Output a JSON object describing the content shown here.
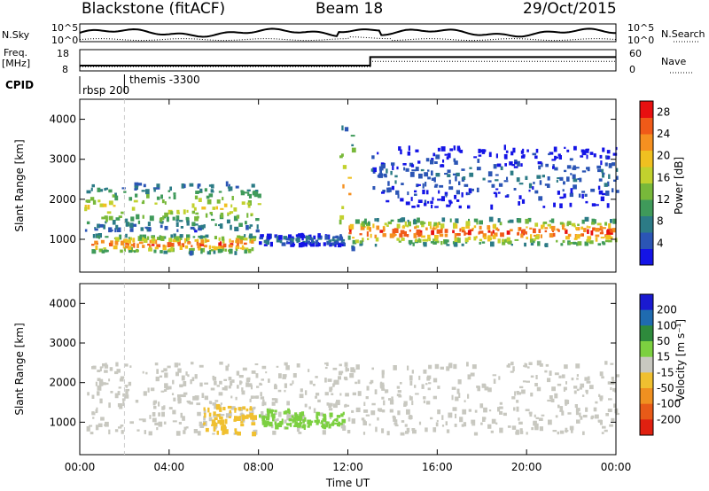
{
  "header": {
    "title": "Blackstone (fitACF)",
    "beam": "Beam 18",
    "date": "29/Oct/2015"
  },
  "noise_panel": {
    "left_label": "N.Sky",
    "right_label": "N.Search",
    "left_ticks": [
      "10^5",
      "10^0"
    ],
    "right_ticks": [
      "10^5",
      "10^0"
    ]
  },
  "freq_panel": {
    "left_label_1": "Freq.",
    "left_label_2": "[MHz]",
    "left_ticks": [
      "18",
      "8"
    ],
    "right_label": "Nave",
    "right_ticks": [
      "60",
      "0"
    ],
    "freq_mhz": [
      {
        "t": 0,
        "v": 10.5
      },
      {
        "t": 13.0,
        "v": 10.5
      },
      {
        "t": 13.0,
        "v": 14.5
      },
      {
        "t": 24,
        "v": 14.5
      }
    ],
    "nave": [
      {
        "t": 0,
        "v": 12
      },
      {
        "t": 13.0,
        "v": 12
      },
      {
        "t": 13.0,
        "v": 27
      },
      {
        "t": 24,
        "v": 27
      }
    ]
  },
  "cpid_panel": {
    "label": "CPID",
    "modes": [
      "rbsp 200",
      "themis -3300"
    ],
    "mode_change_hours": [
      2.0
    ]
  },
  "colors": {
    "power_scale": [
      "#1414e6",
      "#2b55b5",
      "#2c7b86",
      "#3f9a5a",
      "#78b83a",
      "#c2d12e",
      "#f0c020",
      "#f59020",
      "#f05a18",
      "#e81010"
    ],
    "velocity_scale": [
      "#1a1ad0",
      "#1f6bb0",
      "#2e8a3c",
      "#7cd040",
      "#c8c8c0",
      "#f0c030",
      "#f09020",
      "#e85a18",
      "#e02010"
    ],
    "background": "#ffffff"
  },
  "chart_data": [
    {
      "type": "heatmap",
      "name": "power",
      "ylabel": "Slant Range [km]",
      "xlim_hours": [
        0,
        24
      ],
      "ylim_km": [
        180,
        4500
      ],
      "yticks": [
        1000,
        2000,
        3000,
        4000
      ],
      "colorbar_label": "Power [dB]",
      "colorbar_ticks": [
        4,
        8,
        12,
        16,
        20,
        24,
        28
      ],
      "colorbar_range": [
        0,
        30
      ],
      "features": [
        {
          "feature": "1.5-hop band",
          "t_start": 0.5,
          "t_end": 7.8,
          "range_km": [
            650,
            1100
          ],
          "power_db_peak": 29
        },
        {
          "feature": "upper echo streaks",
          "t_start": 0.2,
          "t_end": 8.0,
          "range_km": [
            1200,
            2400
          ],
          "power_db_peak": 20
        },
        {
          "feature": "low-power mid-day band",
          "t_start": 8.0,
          "t_end": 11.8,
          "range_km": [
            850,
            1100
          ],
          "power_db_peak": 10
        },
        {
          "feature": "near-vertical spike",
          "t_start": 11.6,
          "t_end": 12.2,
          "range_km": [
            500,
            3900
          ],
          "power_db_peak": 24
        },
        {
          "feature": "main afternoon band",
          "t_start": 12.0,
          "t_end": 24.0,
          "range_km": [
            850,
            1500
          ],
          "power_db_peak": 30
        },
        {
          "feature": "upper scatter",
          "t_start": 13.0,
          "t_end": 24.0,
          "range_km": [
            1800,
            3300
          ],
          "power_db_peak": 8
        }
      ]
    },
    {
      "type": "heatmap",
      "name": "velocity",
      "xlabel": "Time UT",
      "ylabel": "Slant Range [km]",
      "xlim_hours": [
        0,
        24
      ],
      "xticks": [
        "00:00",
        "04:00",
        "08:00",
        "12:00",
        "16:00",
        "20:00",
        "00:00"
      ],
      "ylim_km": [
        180,
        4500
      ],
      "yticks": [
        1000,
        2000,
        3000,
        4000
      ],
      "colorbar_label": "Velocity [m s⁻¹]",
      "colorbar_ticks": [
        200,
        100,
        50,
        15,
        -15,
        -50,
        -100,
        -200
      ],
      "features": [
        {
          "feature": "ground scatter (near zero)",
          "t_start": 0.3,
          "t_end": 24.0,
          "range_km": [
            700,
            2500
          ],
          "velocity_ms": 0
        },
        {
          "feature": "negative flow patch",
          "t_start": 5.5,
          "t_end": 7.8,
          "range_km": [
            700,
            1400
          ],
          "velocity_ms": -40
        },
        {
          "feature": "positive flow patch",
          "t_start": 8.0,
          "t_end": 11.8,
          "range_km": [
            850,
            1300
          ],
          "velocity_ms": 30
        }
      ]
    }
  ]
}
